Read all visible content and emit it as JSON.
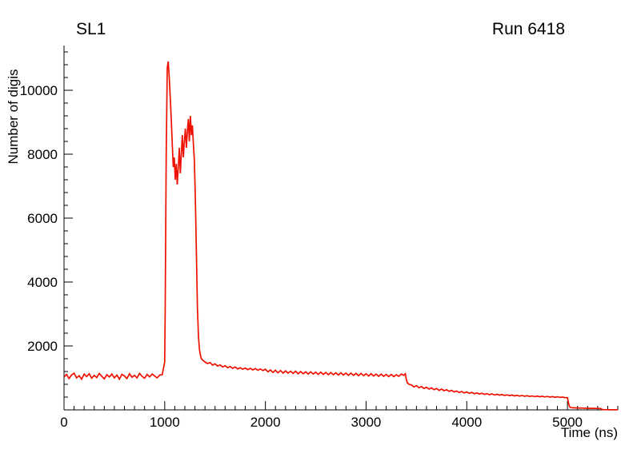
{
  "chart_data": {
    "type": "line",
    "title_left": "SL1",
    "title_right": "Run 6418",
    "xlabel": "Time (ns)",
    "ylabel": "Number of digis",
    "xlim": [
      0,
      5500
    ],
    "ylim": [
      0,
      11400
    ],
    "xticks": [
      0,
      1000,
      2000,
      3000,
      4000,
      5000
    ],
    "yticks": [
      2000,
      4000,
      6000,
      8000,
      10000
    ],
    "x_minor_step": 100,
    "y_minor_step": 400,
    "grid": false,
    "legend": false,
    "series_color": "#ee1100",
    "axis_color": "#000000",
    "points": [
      [
        0,
        1030
      ],
      [
        25,
        1110
      ],
      [
        50,
        980
      ],
      [
        75,
        1090
      ],
      [
        100,
        1150
      ],
      [
        125,
        1000
      ],
      [
        150,
        1070
      ],
      [
        175,
        960
      ],
      [
        200,
        1120
      ],
      [
        225,
        1040
      ],
      [
        250,
        1130
      ],
      [
        275,
        990
      ],
      [
        300,
        1080
      ],
      [
        325,
        1010
      ],
      [
        350,
        1140
      ],
      [
        375,
        1050
      ],
      [
        400,
        970
      ],
      [
        425,
        1100
      ],
      [
        450,
        1030
      ],
      [
        475,
        1120
      ],
      [
        500,
        1000
      ],
      [
        525,
        1090
      ],
      [
        550,
        960
      ],
      [
        575,
        1110
      ],
      [
        600,
        1060
      ],
      [
        625,
        980
      ],
      [
        650,
        1130
      ],
      [
        675,
        1020
      ],
      [
        700,
        1080
      ],
      [
        725,
        1000
      ],
      [
        750,
        1140
      ],
      [
        775,
        1050
      ],
      [
        800,
        990
      ],
      [
        825,
        1110
      ],
      [
        850,
        1030
      ],
      [
        875,
        1120
      ],
      [
        900,
        1060
      ],
      [
        925,
        1000
      ],
      [
        950,
        1090
      ],
      [
        975,
        1100
      ],
      [
        1000,
        1500
      ],
      [
        1005,
        3000
      ],
      [
        1015,
        8000
      ],
      [
        1025,
        10700
      ],
      [
        1035,
        10900
      ],
      [
        1045,
        10400
      ],
      [
        1055,
        9800
      ],
      [
        1065,
        9100
      ],
      [
        1075,
        8300
      ],
      [
        1085,
        7600
      ],
      [
        1095,
        7900
      ],
      [
        1105,
        7200
      ],
      [
        1115,
        7700
      ],
      [
        1125,
        7050
      ],
      [
        1135,
        7600
      ],
      [
        1145,
        8200
      ],
      [
        1155,
        7400
      ],
      [
        1165,
        8000
      ],
      [
        1175,
        8600
      ],
      [
        1185,
        7900
      ],
      [
        1195,
        8400
      ],
      [
        1205,
        8800
      ],
      [
        1215,
        8200
      ],
      [
        1225,
        8700
      ],
      [
        1235,
        9100
      ],
      [
        1245,
        8400
      ],
      [
        1255,
        9200
      ],
      [
        1265,
        8600
      ],
      [
        1275,
        8900
      ],
      [
        1285,
        8300
      ],
      [
        1295,
        7800
      ],
      [
        1305,
        6500
      ],
      [
        1315,
        4800
      ],
      [
        1325,
        3200
      ],
      [
        1335,
        2300
      ],
      [
        1345,
        1900
      ],
      [
        1355,
        1700
      ],
      [
        1365,
        1600
      ],
      [
        1380,
        1550
      ],
      [
        1400,
        1500
      ],
      [
        1425,
        1450
      ],
      [
        1450,
        1480
      ],
      [
        1475,
        1400
      ],
      [
        1500,
        1440
      ],
      [
        1525,
        1370
      ],
      [
        1550,
        1410
      ],
      [
        1575,
        1340
      ],
      [
        1600,
        1380
      ],
      [
        1625,
        1320
      ],
      [
        1650,
        1360
      ],
      [
        1675,
        1300
      ],
      [
        1700,
        1340
      ],
      [
        1725,
        1280
      ],
      [
        1750,
        1320
      ],
      [
        1775,
        1270
      ],
      [
        1800,
        1310
      ],
      [
        1825,
        1260
      ],
      [
        1850,
        1300
      ],
      [
        1875,
        1250
      ],
      [
        1900,
        1290
      ],
      [
        1925,
        1240
      ],
      [
        1950,
        1280
      ],
      [
        1975,
        1230
      ],
      [
        2000,
        1270
      ],
      [
        2025,
        1190
      ],
      [
        2050,
        1250
      ],
      [
        2075,
        1170
      ],
      [
        2100,
        1240
      ],
      [
        2125,
        1160
      ],
      [
        2150,
        1230
      ],
      [
        2175,
        1150
      ],
      [
        2200,
        1220
      ],
      [
        2225,
        1150
      ],
      [
        2250,
        1210
      ],
      [
        2275,
        1140
      ],
      [
        2300,
        1210
      ],
      [
        2325,
        1130
      ],
      [
        2350,
        1200
      ],
      [
        2375,
        1130
      ],
      [
        2400,
        1190
      ],
      [
        2425,
        1120
      ],
      [
        2450,
        1190
      ],
      [
        2475,
        1120
      ],
      [
        2500,
        1180
      ],
      [
        2525,
        1110
      ],
      [
        2550,
        1180
      ],
      [
        2575,
        1110
      ],
      [
        2600,
        1170
      ],
      [
        2625,
        1100
      ],
      [
        2650,
        1170
      ],
      [
        2675,
        1100
      ],
      [
        2700,
        1160
      ],
      [
        2725,
        1090
      ],
      [
        2750,
        1160
      ],
      [
        2775,
        1090
      ],
      [
        2800,
        1150
      ],
      [
        2825,
        1080
      ],
      [
        2850,
        1150
      ],
      [
        2875,
        1080
      ],
      [
        2900,
        1140
      ],
      [
        2925,
        1070
      ],
      [
        2950,
        1140
      ],
      [
        2975,
        1070
      ],
      [
        3000,
        1130
      ],
      [
        3025,
        1060
      ],
      [
        3050,
        1130
      ],
      [
        3075,
        1060
      ],
      [
        3100,
        1120
      ],
      [
        3125,
        1050
      ],
      [
        3150,
        1120
      ],
      [
        3175,
        1050
      ],
      [
        3200,
        1110
      ],
      [
        3225,
        1040
      ],
      [
        3250,
        1110
      ],
      [
        3275,
        1040
      ],
      [
        3300,
        1100
      ],
      [
        3325,
        1050
      ],
      [
        3350,
        1120
      ],
      [
        3375,
        1080
      ],
      [
        3390,
        1130
      ],
      [
        3400,
        950
      ],
      [
        3410,
        850
      ],
      [
        3425,
        800
      ],
      [
        3450,
        780
      ],
      [
        3475,
        720
      ],
      [
        3500,
        760
      ],
      [
        3525,
        690
      ],
      [
        3550,
        730
      ],
      [
        3575,
        670
      ],
      [
        3600,
        710
      ],
      [
        3625,
        650
      ],
      [
        3650,
        690
      ],
      [
        3675,
        630
      ],
      [
        3700,
        670
      ],
      [
        3725,
        610
      ],
      [
        3750,
        650
      ],
      [
        3775,
        600
      ],
      [
        3800,
        630
      ],
      [
        3825,
        580
      ],
      [
        3850,
        610
      ],
      [
        3875,
        560
      ],
      [
        3900,
        590
      ],
      [
        3925,
        545
      ],
      [
        3950,
        575
      ],
      [
        3975,
        530
      ],
      [
        4000,
        560
      ],
      [
        4025,
        520
      ],
      [
        4050,
        545
      ],
      [
        4075,
        505
      ],
      [
        4100,
        530
      ],
      [
        4125,
        495
      ],
      [
        4150,
        520
      ],
      [
        4175,
        485
      ],
      [
        4200,
        510
      ],
      [
        4225,
        475
      ],
      [
        4250,
        500
      ],
      [
        4275,
        465
      ],
      [
        4300,
        490
      ],
      [
        4325,
        460
      ],
      [
        4350,
        480
      ],
      [
        4375,
        450
      ],
      [
        4400,
        470
      ],
      [
        4425,
        445
      ],
      [
        4450,
        465
      ],
      [
        4475,
        435
      ],
      [
        4500,
        455
      ],
      [
        4525,
        430
      ],
      [
        4550,
        450
      ],
      [
        4575,
        425
      ],
      [
        4600,
        445
      ],
      [
        4625,
        420
      ],
      [
        4650,
        435
      ],
      [
        4675,
        415
      ],
      [
        4700,
        430
      ],
      [
        4725,
        410
      ],
      [
        4750,
        425
      ],
      [
        4775,
        405
      ],
      [
        4800,
        420
      ],
      [
        4825,
        400
      ],
      [
        4850,
        415
      ],
      [
        4875,
        395
      ],
      [
        4900,
        410
      ],
      [
        4925,
        390
      ],
      [
        4950,
        400
      ],
      [
        4975,
        385
      ],
      [
        5000,
        380
      ],
      [
        5005,
        300
      ],
      [
        5015,
        150
      ],
      [
        5025,
        80
      ],
      [
        5050,
        65
      ],
      [
        5100,
        60
      ],
      [
        5150,
        55
      ],
      [
        5200,
        50
      ],
      [
        5250,
        48
      ],
      [
        5300,
        45
      ],
      [
        5330,
        40
      ],
      [
        5345,
        15
      ],
      [
        5360,
        5
      ],
      [
        5400,
        4
      ],
      [
        5450,
        3
      ],
      [
        5500,
        2
      ]
    ]
  }
}
